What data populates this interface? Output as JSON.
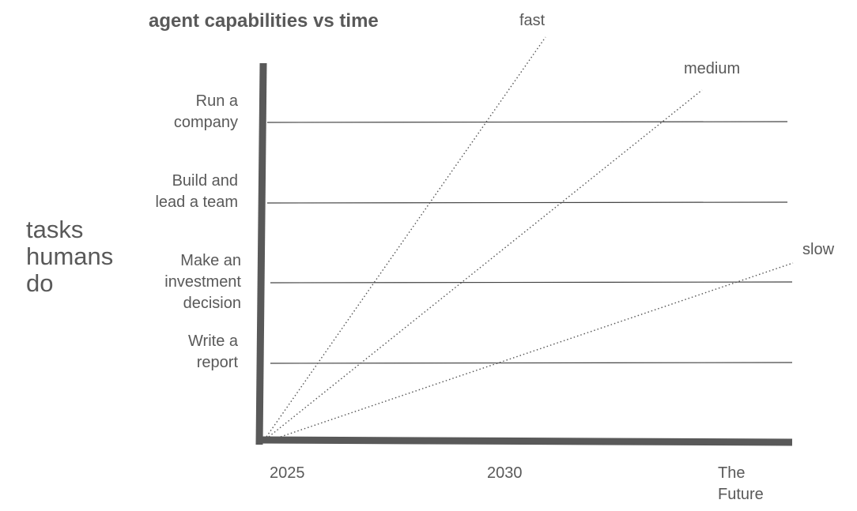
{
  "title": "agent capabilities vs time",
  "y_axis_label": [
    "tasks",
    "humans",
    "do"
  ],
  "tasks": [
    {
      "lines": [
        "Run a",
        "company"
      ]
    },
    {
      "lines": [
        "Build and",
        "lead a team"
      ]
    },
    {
      "lines": [
        "Make an",
        "investment",
        "decision"
      ]
    },
    {
      "lines": [
        "Write a",
        "report"
      ]
    }
  ],
  "x_ticks": [
    {
      "lines": [
        "2025"
      ]
    },
    {
      "lines": [
        "2030"
      ]
    },
    {
      "lines": [
        "The",
        "Future"
      ]
    }
  ],
  "curves": [
    {
      "name": "fast"
    },
    {
      "name": "medium"
    },
    {
      "name": "slow"
    }
  ],
  "colors": {
    "text": "#595959",
    "axis": "#595959",
    "gridline": "#444444",
    "curve": "#555555"
  }
}
